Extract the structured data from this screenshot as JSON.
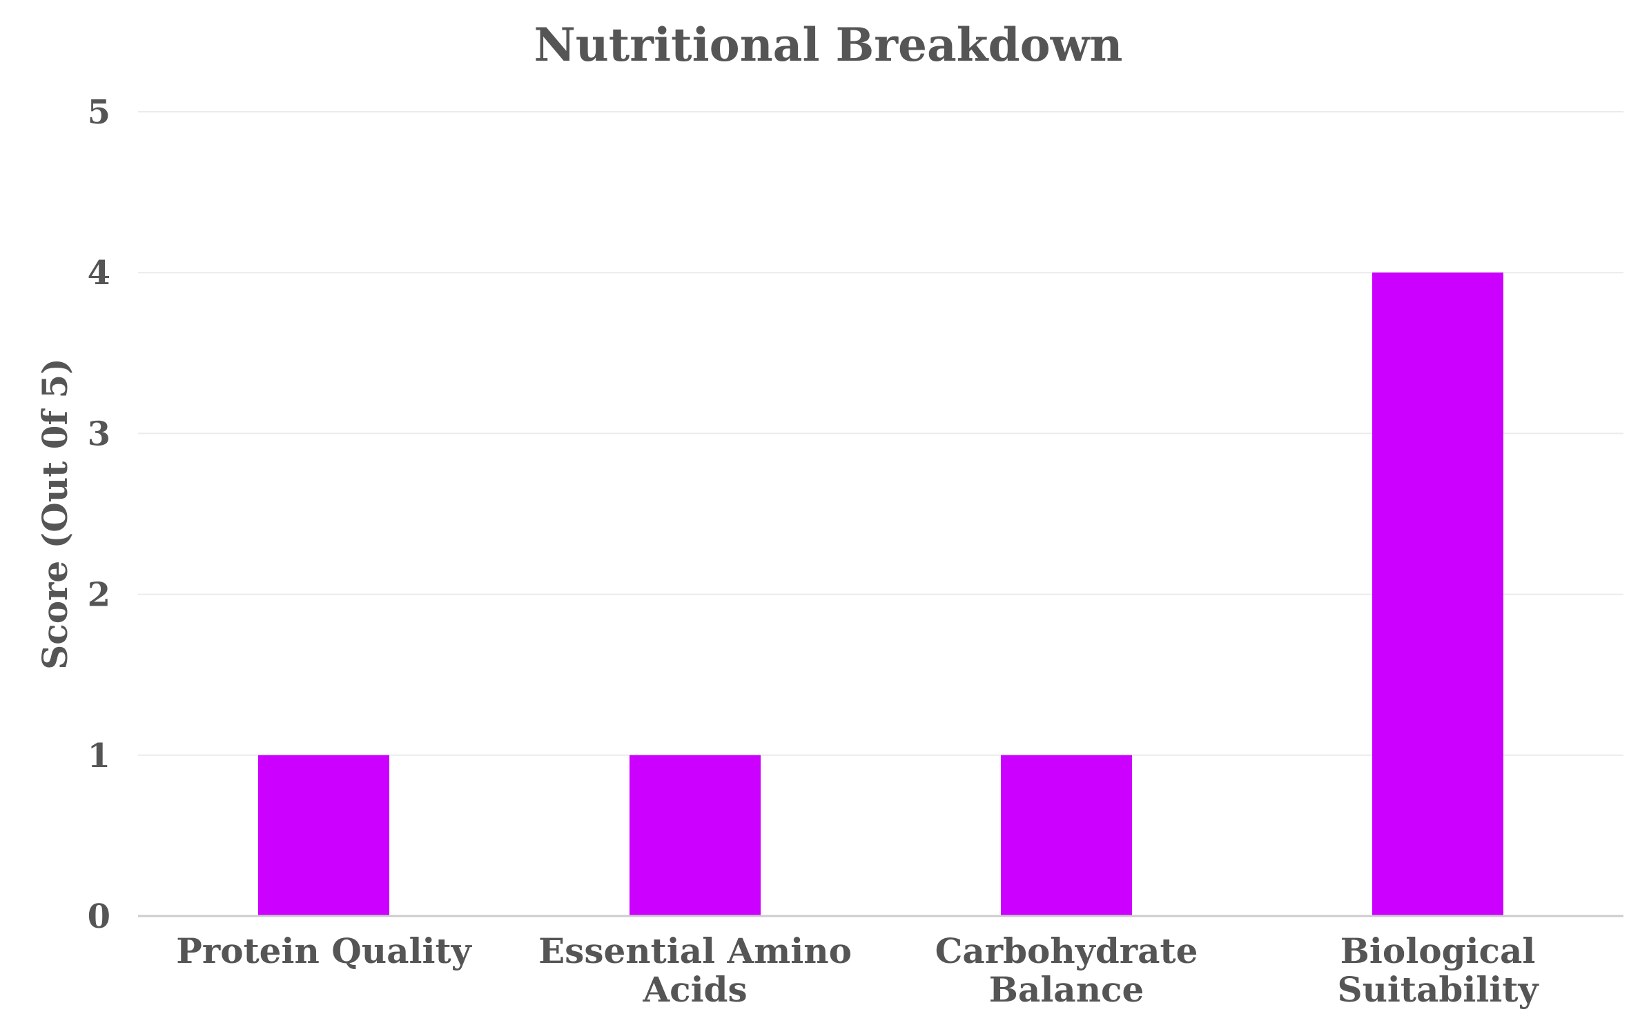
{
  "chart_data": {
    "type": "bar",
    "title": "Nutritional Breakdown",
    "xlabel": "",
    "ylabel": "Score (Out 0f 5)",
    "ylim": [
      0,
      5
    ],
    "yticks": [
      0,
      1,
      2,
      3,
      4,
      5
    ],
    "grid": true,
    "categories": [
      [
        "Protein Quality"
      ],
      [
        "Essential Amino",
        "Acids"
      ],
      [
        "Carbohydrate",
        "Balance"
      ],
      [
        "Biological",
        "Suitability"
      ]
    ],
    "values": [
      1,
      1,
      1,
      4
    ],
    "bar_color": "#cc00ff"
  }
}
